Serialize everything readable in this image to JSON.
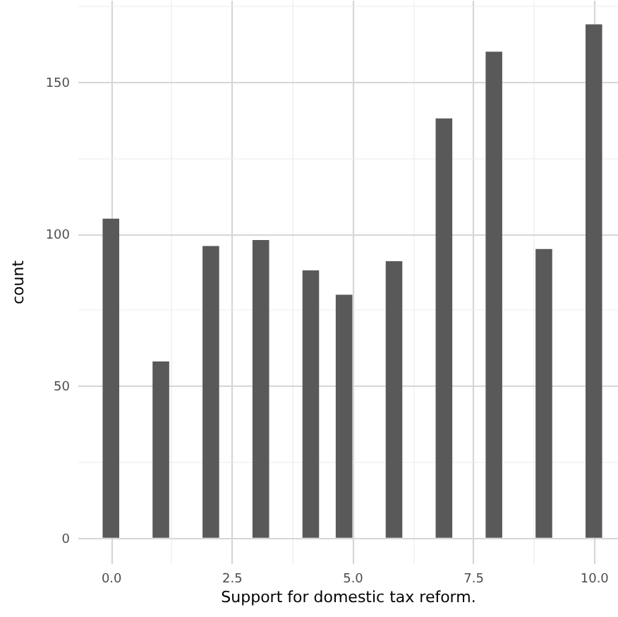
{
  "chart_data": {
    "type": "histogram",
    "xlabel": "Support for domestic tax reform.",
    "ylabel": "count",
    "color": "#595959",
    "bins": [
      -0.172,
      0.172,
      0.517,
      0.862,
      1.207,
      1.552,
      1.897,
      2.241,
      2.586,
      2.931,
      3.276,
      3.621,
      3.966,
      4.31,
      4.655,
      5.0,
      5.345,
      5.69,
      6.034,
      6.379,
      6.724,
      7.069,
      7.414,
      7.759,
      8.103,
      8.448,
      8.793,
      9.138,
      9.483,
      9.828,
      10.172
    ],
    "values": [
      105,
      0,
      0,
      58,
      0,
      0,
      96,
      0,
      0,
      98,
      0,
      0,
      88,
      0,
      80,
      0,
      0,
      91,
      0,
      0,
      138,
      0,
      0,
      160,
      0,
      0,
      95,
      0,
      0,
      169
    ],
    "xlim": [
      -0.69,
      10.5
    ],
    "xticks": [
      {
        "value": 0,
        "label": "0.0"
      },
      {
        "value": 1.25,
        "label": null
      },
      {
        "value": 2.5,
        "label": "2.5"
      },
      {
        "value": 3.75,
        "label": null
      },
      {
        "value": 5,
        "label": "5.0"
      },
      {
        "value": 6.25,
        "label": null
      },
      {
        "value": 7.5,
        "label": "7.5"
      },
      {
        "value": 8.75,
        "label": null
      },
      {
        "value": 10,
        "label": "10.0"
      }
    ],
    "ylim": [
      -8.45,
      177
    ],
    "yticks": [
      0,
      {
        "value": 25,
        "label": null
      },
      50,
      {
        "value": 75,
        "label": null
      },
      100,
      {
        "value": 125,
        "label": null
      },
      150,
      {
        "value": 175,
        "label": null
      }
    ],
    "grid": true
  }
}
